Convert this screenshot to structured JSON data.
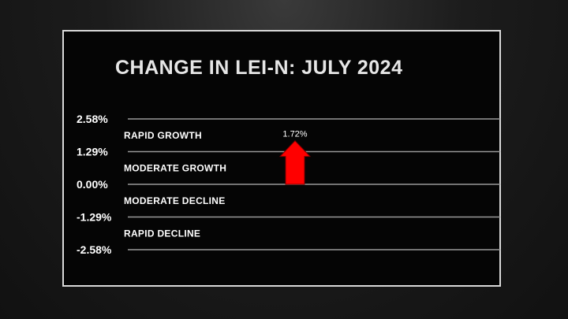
{
  "chart_data": {
    "type": "bar",
    "title": "CHANGE IN LEI-N: JULY 2024",
    "y_ticks": [
      {
        "value": 2.58,
        "label": "2.58%"
      },
      {
        "value": 1.29,
        "label": "1.29%"
      },
      {
        "value": 0.0,
        "label": "0.00%"
      },
      {
        "value": -1.29,
        "label": "-1.29%"
      },
      {
        "value": -2.58,
        "label": "-2.58%"
      }
    ],
    "bands": [
      {
        "label": "RAPID GROWTH",
        "from": 1.29,
        "to": 2.58
      },
      {
        "label": "MODERATE GROWTH",
        "from": 0.0,
        "to": 1.29
      },
      {
        "label": "MODERATE DECLINE",
        "from": -1.29,
        "to": 0.0
      },
      {
        "label": "RAPID DECLINE",
        "from": -2.58,
        "to": -1.29
      }
    ],
    "values": [
      1.72
    ],
    "data_labels": [
      "1.72%"
    ],
    "ylim": [
      -2.58,
      2.58
    ],
    "grid": true,
    "marker": "up-arrow",
    "colors": {
      "marker": "#ff0000",
      "grid": "#9a9a9a",
      "text": "#ffffff"
    }
  }
}
